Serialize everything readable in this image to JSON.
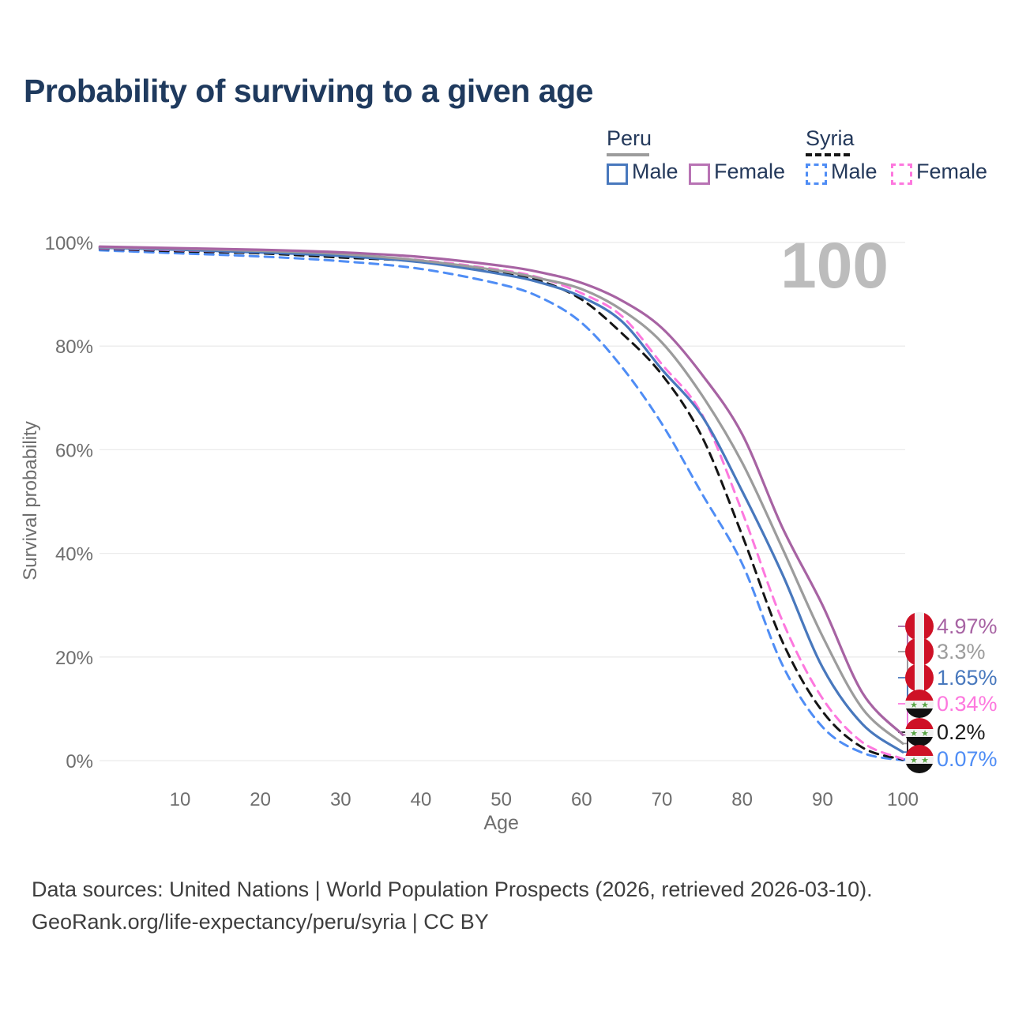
{
  "title": "Probability of surviving to a given age",
  "watermark": "100",
  "legend": {
    "groups": [
      {
        "label": "Peru",
        "line_style": "solid",
        "line_color": "#9c9c9c",
        "items": [
          {
            "label": "Male",
            "color": "#4878bd",
            "dashed": false
          },
          {
            "label": "Female",
            "color": "#b873b4",
            "dashed": false
          }
        ]
      },
      {
        "label": "Syria",
        "line_style": "dashed",
        "line_color": "#151515",
        "items": [
          {
            "label": "Male",
            "color": "#4f8df5",
            "dashed": true
          },
          {
            "label": "Female",
            "color": "#fd78de",
            "dashed": true
          }
        ]
      }
    ]
  },
  "axes": {
    "x_label": "Age",
    "y_label": "Survival probability",
    "x_ticks": [
      10,
      20,
      30,
      40,
      50,
      60,
      70,
      80,
      90,
      100
    ],
    "y_ticks": [
      {
        "value": 0,
        "label": "0%"
      },
      {
        "value": 20,
        "label": "20%"
      },
      {
        "value": 40,
        "label": "40%"
      },
      {
        "value": 60,
        "label": "60%"
      },
      {
        "value": 80,
        "label": "80%"
      },
      {
        "value": 100,
        "label": "100%"
      }
    ]
  },
  "end_labels": [
    {
      "value": "4.97%",
      "flag": "peru",
      "color": "#a763a3"
    },
    {
      "value": "3.3%",
      "flag": "peru",
      "color": "#9c9c9c"
    },
    {
      "value": "1.65%",
      "flag": "peru",
      "color": "#4878bd"
    },
    {
      "value": "0.34%",
      "flag": "syria",
      "color": "#fd78de"
    },
    {
      "value": "0.2%",
      "flag": "syria",
      "color": "#1a1a1a"
    },
    {
      "value": "0.07%",
      "flag": "syria",
      "color": "#4f8df5"
    }
  ],
  "flag_colors": {
    "peru_red": "#ce1126",
    "syria_red": "#ce1126",
    "syria_green": "#59a545",
    "syria_black": "#111111",
    "white": "#f2f2f2"
  },
  "footer": {
    "line1": "Data sources: United Nations | World Population Prospects (2026, retrieved 2026-03-10).",
    "line2": "GeoRank.org/life-expectancy/peru/syria | CC BY"
  },
  "chart_data": {
    "type": "line",
    "title": "Probability of surviving to a given age",
    "xlabel": "Age",
    "ylabel": "Survival probability",
    "xlim": [
      0,
      100
    ],
    "ylim": [
      0,
      100
    ],
    "y_unit": "%",
    "grid": "horizontal",
    "legend_position": "top-right",
    "x": [
      0,
      10,
      20,
      30,
      40,
      50,
      55,
      60,
      65,
      70,
      75,
      80,
      85,
      90,
      95,
      100
    ],
    "series": [
      {
        "name": "Peru Female",
        "country": "Peru",
        "sex": "Female",
        "color": "#a763a3",
        "dashed": false,
        "survival_at_100_pct": 4.97,
        "values": [
          99.2,
          98.9,
          98.6,
          98.1,
          97.2,
          95.5,
          94.2,
          92.2,
          88.8,
          83.5,
          74.5,
          63.0,
          45.0,
          30.0,
          13.0,
          4.97
        ]
      },
      {
        "name": "Peru Both sexes",
        "country": "Peru",
        "sex": "Both",
        "color": "#9c9c9c",
        "dashed": false,
        "survival_at_100_pct": 3.3,
        "values": [
          99.1,
          98.8,
          98.4,
          97.8,
          96.5,
          94.5,
          93.0,
          91.0,
          87.0,
          80.7,
          70.5,
          57.5,
          41.0,
          24.0,
          10.0,
          3.3
        ]
      },
      {
        "name": "Peru Male",
        "country": "Peru",
        "sex": "Male",
        "color": "#4878bd",
        "dashed": false,
        "survival_at_100_pct": 1.65,
        "values": [
          99.0,
          98.6,
          98.1,
          97.4,
          96.2,
          93.9,
          92.2,
          89.5,
          84.8,
          75.5,
          66.5,
          52.0,
          36.0,
          18.0,
          7.0,
          1.65
        ]
      },
      {
        "name": "Syria Female",
        "country": "Syria",
        "sex": "Female",
        "color": "#fd78de",
        "dashed": true,
        "survival_at_100_pct": 0.34,
        "values": [
          98.9,
          98.5,
          98.1,
          97.5,
          96.6,
          94.7,
          93.1,
          90.2,
          85.8,
          76.5,
          66.8,
          48.0,
          27.0,
          12.0,
          3.5,
          0.34
        ]
      },
      {
        "name": "Syria Both sexes",
        "country": "Syria",
        "sex": "Both",
        "color": "#151515",
        "dashed": true,
        "survival_at_100_pct": 0.2,
        "values": [
          98.8,
          98.3,
          97.9,
          97.1,
          96.3,
          94.1,
          92.5,
          89.0,
          82.5,
          74.5,
          62.5,
          43.5,
          23.0,
          9.5,
          2.5,
          0.2
        ]
      },
      {
        "name": "Syria Male",
        "country": "Syria",
        "sex": "Male",
        "color": "#4f8df5",
        "dashed": true,
        "survival_at_100_pct": 0.07,
        "values": [
          98.5,
          97.9,
          97.3,
          96.4,
          94.9,
          91.9,
          89.3,
          84.5,
          76.0,
          65.0,
          51.5,
          38.0,
          18.5,
          6.5,
          1.5,
          0.07
        ]
      }
    ]
  }
}
